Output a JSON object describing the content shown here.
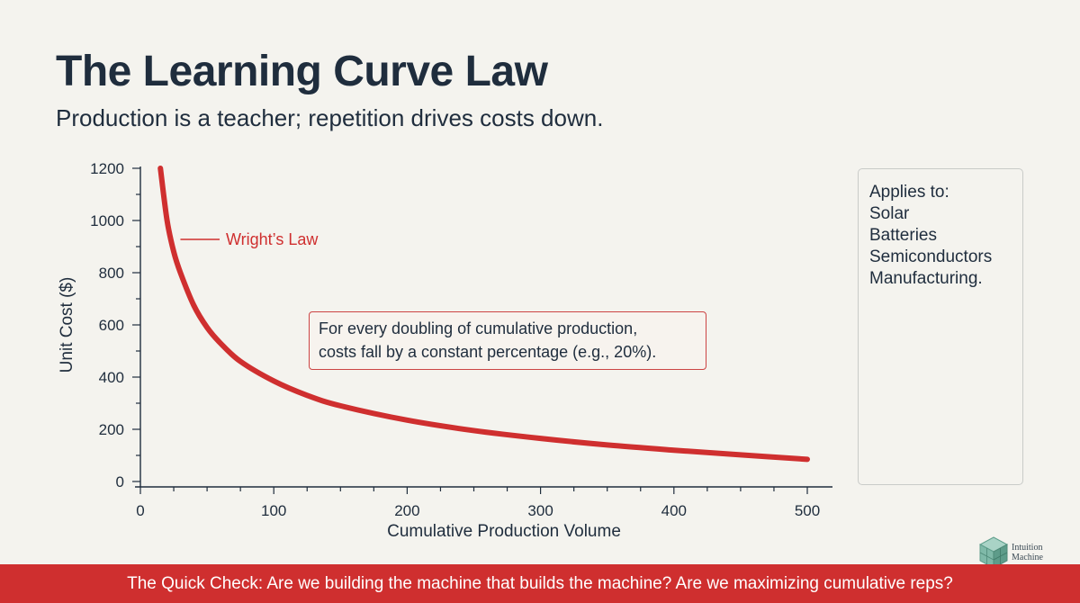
{
  "header": {
    "title": "The Learning Curve Law",
    "subtitle": "Production is a teacher; repetition drives costs down."
  },
  "callout": {
    "line1": "For every doubling of cumulative production,",
    "line2": "costs fall by a constant percentage (e.g., 20%)."
  },
  "applies": {
    "heading": "Applies to:",
    "items": [
      "Solar",
      "Batteries",
      "Semiconductors",
      "Manufacturing."
    ]
  },
  "footer": {
    "text": "The Quick Check: Are we building the machine that builds the machine? Are we maximizing cumulative reps?"
  },
  "logo": {
    "line1": "Intuition",
    "line2": "Machine"
  },
  "colors": {
    "curve": "#cf2f2f",
    "footer": "#cf2f2f",
    "text": "#1f2d3d",
    "background": "#f4f3ee"
  },
  "chart_data": {
    "type": "line",
    "xlabel": "Cumulative Production Volume",
    "ylabel": "Unit Cost ($)",
    "xlim": [
      0,
      500
    ],
    "ylim": [
      0,
      1200
    ],
    "xticks": [
      0,
      100,
      200,
      300,
      400,
      500
    ],
    "yticks": [
      0,
      200,
      400,
      600,
      800,
      1000,
      1200
    ],
    "series": [
      {
        "name": "Wright’s Law",
        "x": [
          15,
          20,
          25,
          30,
          40,
          50,
          60,
          75,
          100,
          125,
          150,
          200,
          250,
          300,
          350,
          400,
          450,
          500
        ],
        "y": [
          1200,
          1000,
          880,
          800,
          675,
          590,
          530,
          460,
          385,
          330,
          290,
          235,
          195,
          165,
          140,
          120,
          102,
          85
        ]
      }
    ]
  }
}
